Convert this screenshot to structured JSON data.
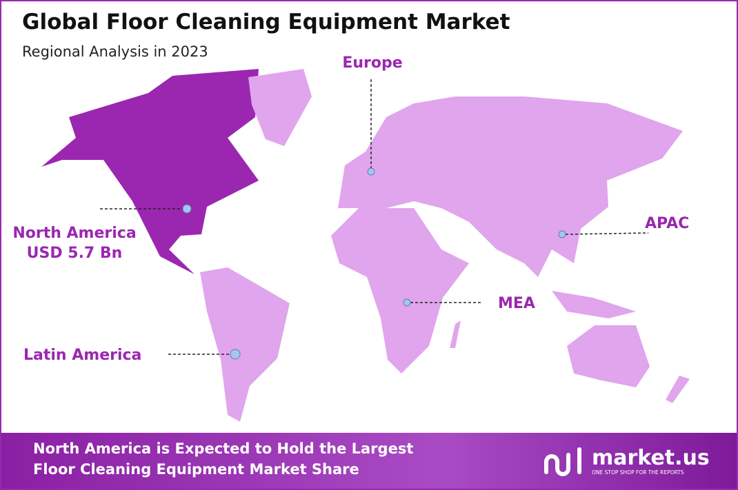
{
  "header": {
    "title": "Global Floor Cleaning Equipment Market",
    "subtitle": "Regional Analysis in 2023"
  },
  "regions": {
    "europe": {
      "label": "Europe"
    },
    "north_america": {
      "label": "North America",
      "value": "USD 5.7 Bn"
    },
    "apac": {
      "label": "APAC"
    },
    "mea": {
      "label": "MEA"
    },
    "latin_america": {
      "label": "Latin America"
    }
  },
  "footer": {
    "lines": [
      "North America is Expected to Hold the Largest",
      "Floor Cleaning Equipment Market Share"
    ],
    "logo": {
      "name": "market.us",
      "tagline": "ONE STOP SHOP FOR THE REPORTS"
    }
  }
}
